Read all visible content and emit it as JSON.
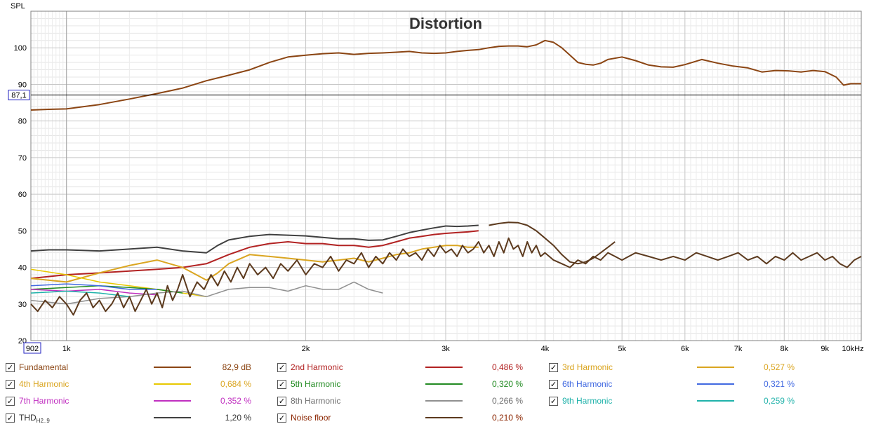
{
  "chart_data": {
    "type": "line",
    "title": "Distortion",
    "ylabel": "SPL",
    "xunit": "Hz",
    "xscale": "log",
    "xlim": [
      902,
      10000
    ],
    "ylim": [
      20,
      110
    ],
    "grid": true,
    "x_tick_labels": [
      "1k",
      "2k",
      "3k",
      "4k",
      "5k",
      "6k",
      "7k",
      "8k",
      "9k",
      "10kHz"
    ],
    "y_tick_labels": [
      "20",
      "30",
      "40",
      "50",
      "60",
      "70",
      "80",
      "90",
      "100"
    ],
    "cursor": {
      "x_readout": "902",
      "y_readout": "87,1",
      "y": 87.1
    },
    "series": [
      {
        "name": "Fundamental",
        "color": "#8B4513",
        "width": 2,
        "x": [
          902,
          950,
          1000,
          1100,
          1200,
          1300,
          1400,
          1500,
          1600,
          1700,
          1800,
          1900,
          2000,
          2100,
          2200,
          2300,
          2400,
          2500,
          2600,
          2700,
          2800,
          2900,
          3000,
          3100,
          3200,
          3300,
          3400,
          3500,
          3600,
          3700,
          3800,
          3900,
          4000,
          4100,
          4200,
          4300,
          4400,
          4500,
          4600,
          4700,
          4800,
          5000,
          5200,
          5400,
          5600,
          5800,
          6000,
          6300,
          6600,
          6900,
          7200,
          7500,
          7800,
          8100,
          8400,
          8700,
          9000,
          9300,
          9500,
          9700,
          10000
        ],
        "y": [
          83,
          83.2,
          83.3,
          84.5,
          86,
          87.5,
          89,
          91,
          92.5,
          94,
          96,
          97.5,
          98,
          98.4,
          98.6,
          98.2,
          98.5,
          98.6,
          98.8,
          99,
          98.6,
          98.5,
          98.6,
          99,
          99.3,
          99.5,
          100,
          100.4,
          100.5,
          100.5,
          100.3,
          100.8,
          102,
          101.5,
          100,
          98,
          96,
          95.5,
          95.3,
          95.8,
          96.8,
          97.5,
          96.5,
          95.3,
          94.8,
          94.7,
          95.4,
          96.8,
          95.8,
          95,
          94.5,
          93.4,
          93.8,
          93.7,
          93.4,
          93.8,
          93.5,
          92,
          89.8,
          90.2,
          90.2
        ]
      },
      {
        "name": "2nd Harmonic",
        "color": "#B22222",
        "width": 2,
        "x": [
          902,
          1000,
          1100,
          1200,
          1300,
          1400,
          1500,
          1600,
          1700,
          1800,
          1900,
          2000,
          2100,
          2200,
          2300,
          2400,
          2500,
          2600,
          2700,
          2800,
          2900,
          3000,
          3100,
          3200,
          3300
        ],
        "y": [
          37,
          38,
          38.5,
          39,
          39.5,
          40,
          41,
          43.5,
          45.5,
          46.5,
          47,
          46.5,
          46.5,
          46,
          46,
          45.5,
          46,
          47,
          48,
          48.5,
          49,
          49.3,
          49.5,
          49.7,
          50
        ]
      },
      {
        "name": "3rd Harmonic",
        "color": "#DAA520",
        "width": 2,
        "x": [
          902,
          1000,
          1100,
          1200,
          1300,
          1400,
          1500,
          1550,
          1600,
          1700,
          1800,
          1900,
          2000,
          2100,
          2200,
          2300,
          2400,
          2500,
          2600,
          2700,
          2800,
          2900,
          3000,
          3100,
          3200,
          3300
        ],
        "y": [
          37,
          36,
          38.5,
          40.5,
          42,
          40,
          36.5,
          38.5,
          41,
          43.5,
          43,
          42.5,
          42,
          41.5,
          42,
          42.5,
          41.5,
          42.5,
          43.5,
          44,
          45,
          45.5,
          46,
          46,
          45.5,
          45.5
        ]
      },
      {
        "name": "4th Harmonic",
        "color": "#E8C800",
        "width": 1.5,
        "x": [
          902,
          1000,
          1100,
          1200,
          1300,
          1400,
          1500
        ],
        "y": [
          39.5,
          38,
          36,
          35,
          34,
          33,
          32
        ]
      },
      {
        "name": "5th Harmonic",
        "color": "#228B22",
        "width": 1.5,
        "x": [
          902,
          1000,
          1100,
          1200,
          1300,
          1400
        ],
        "y": [
          34,
          34.5,
          35,
          34.5,
          34,
          33
        ]
      },
      {
        "name": "6th Harmonic",
        "color": "#4169E1",
        "width": 1.5,
        "x": [
          902,
          1000,
          1100,
          1200,
          1300
        ],
        "y": [
          35,
          35.5,
          35,
          34,
          34
        ]
      },
      {
        "name": "7th Harmonic",
        "color": "#C030C0",
        "width": 1.5,
        "x": [
          902,
          1000,
          1100,
          1200,
          1300
        ],
        "y": [
          34,
          33.5,
          34,
          33,
          32.5
        ]
      },
      {
        "name": "8th Harmonic",
        "color": "#909090",
        "width": 1.5,
        "x": [
          902,
          1000,
          1100,
          1200,
          1300,
          1400,
          1500,
          1600,
          1700,
          1800,
          1900,
          2000,
          2100,
          2200,
          2300,
          2400,
          2500
        ],
        "y": [
          31,
          30,
          31.5,
          32,
          33,
          33.5,
          32,
          34,
          34.5,
          34.5,
          33.5,
          35,
          34,
          34,
          36,
          34,
          33
        ]
      },
      {
        "name": "9th Harmonic",
        "color": "#20B2AA",
        "width": 1.5,
        "x": [
          902,
          1000,
          1100,
          1200
        ],
        "y": [
          33,
          33.5,
          33,
          32
        ]
      },
      {
        "name": "THD",
        "color": "#404040",
        "width": 2,
        "x": [
          902,
          950,
          1000,
          1100,
          1200,
          1300,
          1400,
          1500,
          1550,
          1600,
          1700,
          1800,
          1900,
          2000,
          2100,
          2200,
          2300,
          2400,
          2500,
          2600,
          2700,
          2800,
          2900,
          3000,
          3100,
          3200,
          3300
        ],
        "y": [
          44.5,
          44.8,
          44.8,
          44.5,
          45,
          45.5,
          44.5,
          44,
          46,
          47.5,
          48.5,
          49,
          48.8,
          48.6,
          48.2,
          47.8,
          47.8,
          47.4,
          47.5,
          48.5,
          49.5,
          50.2,
          50.8,
          51.3,
          51.2,
          51.3,
          51.5
        ]
      },
      {
        "name": "Noise floor",
        "color": "#5C3A1E",
        "width": 2,
        "x": [
          902,
          920,
          940,
          960,
          980,
          1000,
          1020,
          1040,
          1060,
          1080,
          1100,
          1120,
          1140,
          1160,
          1180,
          1200,
          1220,
          1240,
          1260,
          1280,
          1300,
          1320,
          1340,
          1360,
          1380,
          1400,
          1430,
          1460,
          1490,
          1520,
          1550,
          1580,
          1610,
          1640,
          1670,
          1700,
          1740,
          1780,
          1820,
          1860,
          1900,
          1950,
          2000,
          2050,
          2100,
          2150,
          2200,
          2250,
          2300,
          2350,
          2400,
          2450,
          2500,
          2550,
          2600,
          2650,
          2700,
          2750,
          2800,
          2850,
          2900,
          2950,
          3000,
          3050,
          3100,
          3150,
          3200,
          3250,
          3300,
          3350,
          3400,
          3450,
          3500,
          3550,
          3600,
          3650,
          3700,
          3750,
          3800,
          3850,
          3900,
          3950,
          4000,
          4100,
          4200,
          4300,
          4400,
          4500,
          4600,
          4700,
          4800,
          4900,
          5000,
          5200,
          5400,
          5600,
          5800,
          6000,
          6200,
          6400,
          6600,
          6800,
          7000,
          7200,
          7400,
          7600,
          7800,
          8000,
          8200,
          8400,
          8600,
          8800,
          9000,
          9200,
          9400,
          9600,
          9800,
          10000
        ],
        "y": [
          30,
          28,
          31,
          29,
          32,
          30,
          27,
          31,
          33,
          29,
          31,
          28,
          30,
          33,
          29,
          32,
          28,
          31,
          34,
          30,
          33,
          29,
          35,
          31,
          34,
          38,
          32,
          36,
          34,
          38,
          35,
          39,
          36,
          40,
          37,
          41,
          38,
          40,
          37,
          41,
          39,
          42,
          38,
          41,
          40,
          43,
          39,
          42,
          41,
          44,
          40,
          43,
          41,
          44,
          42,
          45,
          43,
          44,
          42,
          45,
          43,
          46,
          44,
          45,
          43,
          46,
          44,
          45,
          47,
          44,
          46,
          43,
          47,
          44,
          48,
          45,
          46,
          43,
          47,
          44,
          46,
          43,
          44,
          42,
          41,
          40,
          42,
          41,
          43,
          42,
          44,
          43,
          42,
          44,
          43,
          42,
          43,
          42,
          44,
          43,
          42,
          43,
          44,
          42,
          43,
          41,
          43,
          42,
          44,
          42,
          43,
          44,
          42,
          43,
          41,
          40,
          42,
          43
        ]
      },
      {
        "name": "Noise floor (upper)",
        "color": "#5C3A1E",
        "width": 2,
        "x": [
          3400,
          3500,
          3600,
          3700,
          3800,
          3900,
          4000,
          4100,
          4200,
          4300,
          4400,
          4500,
          4600,
          4700,
          4800,
          4900
        ],
        "y": [
          51.5,
          52,
          52.3,
          52.2,
          51.5,
          50,
          48,
          46,
          43.5,
          41.5,
          41,
          41.5,
          42.5,
          44,
          45.5,
          47
        ]
      }
    ]
  },
  "legend": [
    {
      "label": "Fundamental",
      "value": "82,9 dB",
      "color": "#8B4513",
      "checked": true
    },
    {
      "label": "2nd Harmonic",
      "value": "0,486 %",
      "color": "#B22222",
      "checked": true
    },
    {
      "label": "3rd Harmonic",
      "value": "0,527 %",
      "color": "#DAA520",
      "checked": true
    },
    {
      "label": "4th Harmonic",
      "value": "0,684 %",
      "color": "#E8C800",
      "checked": true
    },
    {
      "label": "5th Harmonic",
      "value": "0,320 %",
      "color": "#228B22",
      "checked": true
    },
    {
      "label": "6th Harmonic",
      "value": "0,321 %",
      "color": "#4169E1",
      "checked": true
    },
    {
      "label": "7th Harmonic",
      "value": "0,352 %",
      "color": "#C030C0",
      "checked": true
    },
    {
      "label": "8th Harmonic",
      "value": "0,266 %",
      "color": "#909090",
      "checked": true
    },
    {
      "label": "9th Harmonic",
      "value": "0,259 %",
      "color": "#20B2AA",
      "checked": true
    },
    {
      "label": "THD",
      "label_sub": "H2..9",
      "value": "1,20 %",
      "color": "#404040",
      "checked": true
    },
    {
      "label": "Noise floor",
      "value": "0,210 %",
      "color": "#5C3A1E",
      "checked": true
    }
  ],
  "legend_text_colors": {
    "Fundamental": "#8B4513",
    "2nd Harmonic": "#B22222",
    "3rd Harmonic": "#DAA520",
    "4th Harmonic": "#DAA520",
    "5th Harmonic": "#228B22",
    "6th Harmonic": "#4169E1",
    "7th Harmonic": "#C030C0",
    "8th Harmonic": "#707070",
    "9th Harmonic": "#20B2AA",
    "THD": "#333333",
    "Noise floor": "#8B2500"
  }
}
